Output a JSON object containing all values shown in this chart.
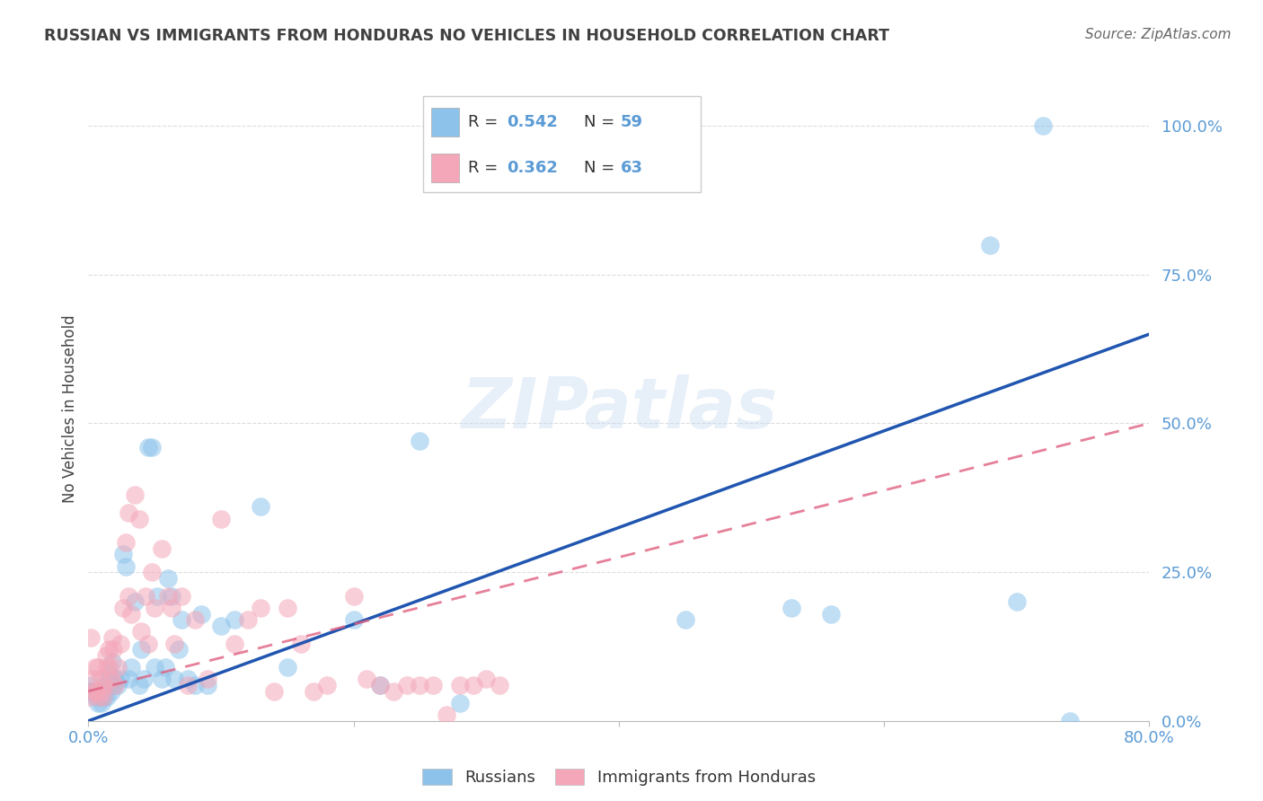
{
  "title": "RUSSIAN VS IMMIGRANTS FROM HONDURAS NO VEHICLES IN HOUSEHOLD CORRELATION CHART",
  "source": "Source: ZipAtlas.com",
  "ylabel_label": "No Vehicles in Household",
  "xmin": 0.0,
  "xmax": 0.8,
  "ymin": 0.0,
  "ymax": 1.05,
  "blue_color": "#8dc3eb",
  "pink_color": "#f4a7b9",
  "line_blue": "#2055b0",
  "line_pink": "#e06080",
  "watermark": "ZIPatlas",
  "legend_r_blue": "0.542",
  "legend_n_blue": "59",
  "legend_r_pink": "0.362",
  "legend_n_pink": "63",
  "blue_line_x0": 0.0,
  "blue_line_y0": 0.0,
  "blue_line_x1": 0.8,
  "blue_line_y1": 0.65,
  "pink_line_x0": 0.0,
  "pink_line_y0": 0.05,
  "pink_line_x1": 0.8,
  "pink_line_y1": 0.5,
  "blue_x": [
    0.002,
    0.003,
    0.004,
    0.005,
    0.006,
    0.007,
    0.008,
    0.009,
    0.01,
    0.011,
    0.012,
    0.013,
    0.014,
    0.015,
    0.016,
    0.017,
    0.018,
    0.019,
    0.02,
    0.022,
    0.024,
    0.026,
    0.028,
    0.03,
    0.032,
    0.035,
    0.038,
    0.04,
    0.042,
    0.045,
    0.048,
    0.05,
    0.052,
    0.055,
    0.058,
    0.06,
    0.063,
    0.065,
    0.068,
    0.07,
    0.075,
    0.08,
    0.085,
    0.09,
    0.1,
    0.11,
    0.13,
    0.15,
    0.2,
    0.22,
    0.25,
    0.28,
    0.45,
    0.53,
    0.56,
    0.68,
    0.7,
    0.72,
    0.74
  ],
  "blue_y": [
    0.05,
    0.06,
    0.05,
    0.04,
    0.05,
    0.03,
    0.05,
    0.04,
    0.03,
    0.05,
    0.04,
    0.06,
    0.04,
    0.07,
    0.08,
    0.05,
    0.1,
    0.06,
    0.07,
    0.06,
    0.07,
    0.28,
    0.26,
    0.07,
    0.09,
    0.2,
    0.06,
    0.12,
    0.07,
    0.46,
    0.46,
    0.09,
    0.21,
    0.07,
    0.09,
    0.24,
    0.21,
    0.07,
    0.12,
    0.17,
    0.07,
    0.06,
    0.18,
    0.06,
    0.16,
    0.17,
    0.36,
    0.09,
    0.17,
    0.06,
    0.47,
    0.03,
    0.17,
    0.19,
    0.18,
    0.8,
    0.2,
    1.0,
    0.0
  ],
  "pink_x": [
    0.001,
    0.002,
    0.003,
    0.004,
    0.005,
    0.006,
    0.007,
    0.008,
    0.009,
    0.01,
    0.011,
    0.012,
    0.013,
    0.014,
    0.015,
    0.016,
    0.017,
    0.018,
    0.019,
    0.02,
    0.022,
    0.024,
    0.026,
    0.028,
    0.03,
    0.032,
    0.035,
    0.038,
    0.04,
    0.043,
    0.045,
    0.048,
    0.05,
    0.055,
    0.06,
    0.063,
    0.065,
    0.07,
    0.075,
    0.08,
    0.09,
    0.1,
    0.11,
    0.12,
    0.13,
    0.14,
    0.15,
    0.16,
    0.17,
    0.18,
    0.2,
    0.21,
    0.22,
    0.23,
    0.24,
    0.25,
    0.26,
    0.27,
    0.28,
    0.29,
    0.3,
    0.31,
    0.03
  ],
  "pink_y": [
    0.04,
    0.14,
    0.07,
    0.05,
    0.09,
    0.05,
    0.09,
    0.04,
    0.07,
    0.05,
    0.04,
    0.06,
    0.11,
    0.09,
    0.12,
    0.09,
    0.07,
    0.14,
    0.12,
    0.06,
    0.09,
    0.13,
    0.19,
    0.3,
    0.21,
    0.18,
    0.38,
    0.34,
    0.15,
    0.21,
    0.13,
    0.25,
    0.19,
    0.29,
    0.21,
    0.19,
    0.13,
    0.21,
    0.06,
    0.17,
    0.07,
    0.34,
    0.13,
    0.17,
    0.19,
    0.05,
    0.19,
    0.13,
    0.05,
    0.06,
    0.21,
    0.07,
    0.06,
    0.05,
    0.06,
    0.06,
    0.06,
    0.01,
    0.06,
    0.06,
    0.07,
    0.06,
    0.35
  ],
  "background_color": "#ffffff",
  "grid_color": "#dddddd",
  "tick_color": "#5b9bd5",
  "title_color": "#404040"
}
